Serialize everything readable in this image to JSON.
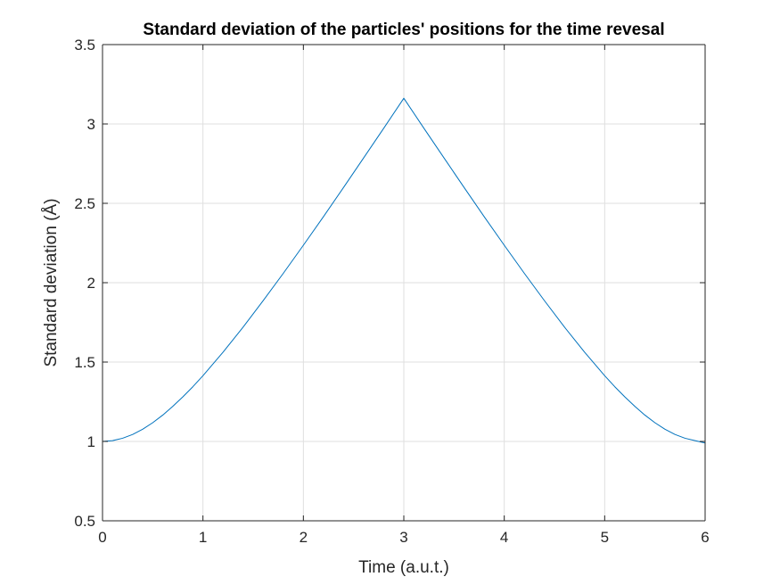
{
  "chart_data": {
    "type": "line",
    "title": "Standard deviation of the particles' positions for the time revesal",
    "xlabel": "Time (a.u.t.)",
    "ylabel": "Standard deviation (Å)",
    "xlim": [
      0,
      6
    ],
    "ylim": [
      0.5,
      3.5
    ],
    "xticks": [
      0,
      1,
      2,
      3,
      4,
      5,
      6
    ],
    "xtick_labels": [
      "0",
      "1",
      "2",
      "3",
      "4",
      "5",
      "6"
    ],
    "yticks": [
      0.5,
      1,
      1.5,
      2,
      2.5,
      3,
      3.5
    ],
    "ytick_labels": [
      "0.5",
      "1",
      "1.5",
      "2",
      "2.5",
      "3",
      "3.5"
    ],
    "grid": true,
    "series": [
      {
        "color": "#0072BD",
        "x": [
          0,
          0.1,
          0.2,
          0.3,
          0.4,
          0.5,
          0.6,
          0.7,
          0.8,
          0.9,
          1.0,
          1.2,
          1.4,
          1.6,
          1.8,
          2.0,
          2.2,
          2.4,
          2.6,
          2.8,
          3.0,
          3.2,
          3.4,
          3.6,
          3.8,
          4.0,
          4.2,
          4.4,
          4.6,
          4.8,
          5.0,
          5.1,
          5.2,
          5.3,
          5.4,
          5.5,
          5.6,
          5.7,
          5.8,
          5.9,
          6.0
        ],
        "y": [
          1.0,
          1.005,
          1.02,
          1.044,
          1.077,
          1.118,
          1.166,
          1.221,
          1.281,
          1.345,
          1.414,
          1.562,
          1.72,
          1.887,
          2.059,
          2.236,
          2.416,
          2.6,
          2.786,
          2.973,
          3.162,
          2.973,
          2.786,
          2.6,
          2.416,
          2.236,
          2.059,
          1.887,
          1.72,
          1.562,
          1.414,
          1.345,
          1.281,
          1.221,
          1.166,
          1.118,
          1.077,
          1.044,
          1.02,
          1.005,
          0.99
        ]
      }
    ]
  }
}
